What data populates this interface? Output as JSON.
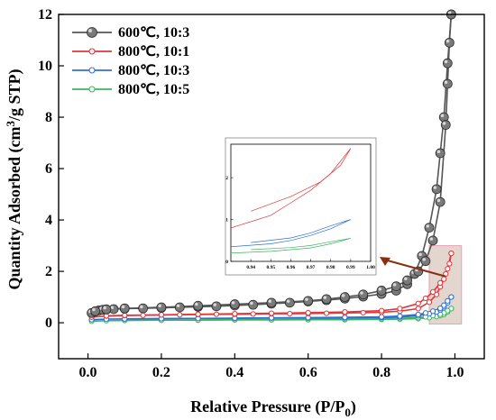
{
  "chart_data": {
    "type": "line",
    "xlabel": "Relative Pressure (P/P",
    "xlabel_sub": "0",
    "xlabel_tail": ")",
    "ylabel": "Quantity Adsorbed (cm",
    "ylabel_sup": "3",
    "ylabel_tail": "/g STP)",
    "xlim": [
      -0.08,
      1.08
    ],
    "ylim": [
      -1.4,
      12
    ],
    "xticks": [
      "0.0",
      "0.2",
      "0.4",
      "0.6",
      "0.8",
      "1.0"
    ],
    "yticks": [
      "0",
      "2",
      "4",
      "6",
      "8",
      "10",
      "12"
    ],
    "legend_position": "top-left",
    "series": [
      {
        "name": "600℃,  10:3",
        "color": "#555555",
        "marker": "sphere",
        "adsorption": [
          [
            0.01,
            0.38
          ],
          [
            0.02,
            0.44
          ],
          [
            0.03,
            0.48
          ],
          [
            0.04,
            0.5
          ],
          [
            0.05,
            0.52
          ],
          [
            0.07,
            0.53
          ],
          [
            0.1,
            0.55
          ],
          [
            0.15,
            0.56
          ],
          [
            0.2,
            0.58
          ],
          [
            0.25,
            0.6
          ],
          [
            0.3,
            0.62
          ],
          [
            0.35,
            0.64
          ],
          [
            0.4,
            0.67
          ],
          [
            0.45,
            0.7
          ],
          [
            0.5,
            0.74
          ],
          [
            0.55,
            0.78
          ],
          [
            0.6,
            0.83
          ],
          [
            0.65,
            0.88
          ],
          [
            0.7,
            0.94
          ],
          [
            0.75,
            1.02
          ],
          [
            0.8,
            1.12
          ],
          [
            0.84,
            1.25
          ],
          [
            0.87,
            1.5
          ],
          [
            0.89,
            1.9
          ],
          [
            0.91,
            2.6
          ],
          [
            0.93,
            3.7
          ],
          [
            0.95,
            5.2
          ],
          [
            0.96,
            6.6
          ],
          [
            0.97,
            8.0
          ],
          [
            0.98,
            10.1
          ],
          [
            0.99,
            12.0
          ]
        ],
        "desorption": [
          [
            0.99,
            12.0
          ],
          [
            0.985,
            10.9
          ],
          [
            0.98,
            9.3
          ],
          [
            0.975,
            7.7
          ],
          [
            0.96,
            4.7
          ],
          [
            0.94,
            3.2
          ],
          [
            0.92,
            2.4
          ],
          [
            0.9,
            2.0
          ],
          [
            0.87,
            1.65
          ],
          [
            0.84,
            1.42
          ],
          [
            0.8,
            1.25
          ],
          [
            0.75,
            1.1
          ],
          [
            0.7,
            1.0
          ],
          [
            0.65,
            0.92
          ],
          [
            0.6,
            0.85
          ],
          [
            0.5,
            0.78
          ],
          [
            0.4,
            0.72
          ],
          [
            0.3,
            0.66
          ],
          [
            0.2,
            0.6
          ],
          [
            0.1,
            0.56
          ],
          [
            0.05,
            0.52
          ],
          [
            0.02,
            0.45
          ]
        ]
      },
      {
        "name": "800℃,  10:1",
        "color": "#e0363a",
        "marker": "circle",
        "adsorption": [
          [
            0.01,
            0.22
          ],
          [
            0.05,
            0.26
          ],
          [
            0.1,
            0.28
          ],
          [
            0.15,
            0.29
          ],
          [
            0.2,
            0.3
          ],
          [
            0.25,
            0.31
          ],
          [
            0.3,
            0.32
          ],
          [
            0.35,
            0.33
          ],
          [
            0.4,
            0.33
          ],
          [
            0.45,
            0.34
          ],
          [
            0.5,
            0.35
          ],
          [
            0.55,
            0.35
          ],
          [
            0.6,
            0.36
          ],
          [
            0.65,
            0.37
          ],
          [
            0.7,
            0.38
          ],
          [
            0.75,
            0.39
          ],
          [
            0.8,
            0.41
          ],
          [
            0.85,
            0.45
          ],
          [
            0.9,
            0.55
          ],
          [
            0.93,
            0.8
          ],
          [
            0.95,
            1.1
          ],
          [
            0.96,
            1.4
          ],
          [
            0.97,
            1.7
          ],
          [
            0.98,
            2.1
          ],
          [
            0.99,
            2.7
          ]
        ],
        "desorption": [
          [
            0.99,
            2.7
          ],
          [
            0.985,
            2.3
          ],
          [
            0.975,
            1.9
          ],
          [
            0.96,
            1.55
          ],
          [
            0.94,
            1.2
          ],
          [
            0.92,
            0.95
          ],
          [
            0.9,
            0.75
          ],
          [
            0.85,
            0.55
          ],
          [
            0.8,
            0.47
          ],
          [
            0.7,
            0.42
          ],
          [
            0.6,
            0.39
          ],
          [
            0.5,
            0.37
          ],
          [
            0.4,
            0.35
          ],
          [
            0.3,
            0.33
          ],
          [
            0.2,
            0.31
          ],
          [
            0.1,
            0.29
          ],
          [
            0.05,
            0.27
          ]
        ]
      },
      {
        "name": "800℃,  10:3",
        "color": "#2f6fd8",
        "marker": "circle",
        "adsorption": [
          [
            0.01,
            0.12
          ],
          [
            0.05,
            0.14
          ],
          [
            0.1,
            0.15
          ],
          [
            0.2,
            0.16
          ],
          [
            0.3,
            0.17
          ],
          [
            0.4,
            0.17
          ],
          [
            0.5,
            0.18
          ],
          [
            0.6,
            0.18
          ],
          [
            0.7,
            0.19
          ],
          [
            0.8,
            0.2
          ],
          [
            0.85,
            0.22
          ],
          [
            0.9,
            0.27
          ],
          [
            0.93,
            0.35
          ],
          [
            0.95,
            0.42
          ],
          [
            0.96,
            0.5
          ],
          [
            0.97,
            0.62
          ],
          [
            0.98,
            0.78
          ],
          [
            0.99,
            1.0
          ]
        ],
        "desorption": [
          [
            0.99,
            1.0
          ],
          [
            0.98,
            0.85
          ],
          [
            0.97,
            0.68
          ],
          [
            0.96,
            0.56
          ],
          [
            0.94,
            0.45
          ],
          [
            0.92,
            0.38
          ],
          [
            0.9,
            0.32
          ],
          [
            0.85,
            0.26
          ],
          [
            0.8,
            0.23
          ],
          [
            0.7,
            0.21
          ],
          [
            0.6,
            0.2
          ],
          [
            0.5,
            0.19
          ],
          [
            0.4,
            0.18
          ],
          [
            0.3,
            0.17
          ],
          [
            0.2,
            0.16
          ],
          [
            0.1,
            0.15
          ]
        ]
      },
      {
        "name": "800℃,  10:5",
        "color": "#3db560",
        "marker": "circle",
        "adsorption": [
          [
            0.01,
            0.06
          ],
          [
            0.05,
            0.08
          ],
          [
            0.1,
            0.09
          ],
          [
            0.2,
            0.1
          ],
          [
            0.3,
            0.1
          ],
          [
            0.4,
            0.11
          ],
          [
            0.5,
            0.11
          ],
          [
            0.6,
            0.12
          ],
          [
            0.7,
            0.12
          ],
          [
            0.8,
            0.13
          ],
          [
            0.85,
            0.14
          ],
          [
            0.9,
            0.16
          ],
          [
            0.93,
            0.2
          ],
          [
            0.95,
            0.24
          ],
          [
            0.96,
            0.28
          ],
          [
            0.97,
            0.32
          ],
          [
            0.98,
            0.42
          ],
          [
            0.99,
            0.55
          ]
        ],
        "desorption": [
          [
            0.99,
            0.55
          ],
          [
            0.98,
            0.47
          ],
          [
            0.97,
            0.38
          ],
          [
            0.96,
            0.33
          ],
          [
            0.94,
            0.28
          ],
          [
            0.92,
            0.23
          ],
          [
            0.9,
            0.2
          ],
          [
            0.85,
            0.17
          ],
          [
            0.8,
            0.15
          ],
          [
            0.7,
            0.14
          ],
          [
            0.6,
            0.13
          ],
          [
            0.5,
            0.12
          ],
          [
            0.4,
            0.12
          ],
          [
            0.3,
            0.11
          ],
          [
            0.2,
            0.1
          ],
          [
            0.1,
            0.1
          ]
        ]
      }
    ],
    "highlight_region": {
      "x": [
        0.93,
        1.0
      ],
      "y": [
        0,
        3.0
      ],
      "color": "#d9c8bd"
    },
    "inset": {
      "xlim": [
        0.93,
        1.0
      ],
      "ylim": [
        0,
        2.8
      ],
      "xticks": [
        "0.94",
        "0.95",
        "0.96",
        "0.97",
        "0.98",
        "0.99",
        "1.00"
      ],
      "yticks": [
        "0",
        "1",
        "2"
      ],
      "arrow_color": "#8b2d10"
    }
  }
}
